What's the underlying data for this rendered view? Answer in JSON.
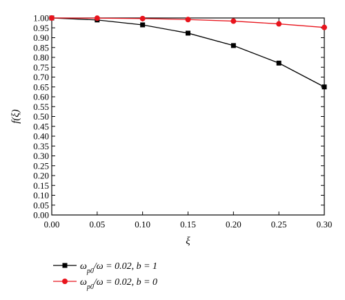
{
  "chart_data": {
    "type": "line",
    "title": "",
    "xlabel": "ξ",
    "ylabel": "f(ξ)",
    "xlim": [
      0.0,
      0.3
    ],
    "ylim": [
      0.0,
      1.0
    ],
    "x_ticks": [
      "0.00",
      "0.05",
      "0.10",
      "0.15",
      "0.20",
      "0.25",
      "0.30"
    ],
    "y_ticks": [
      "0.00",
      "0.05",
      "0.10",
      "0.15",
      "0.20",
      "0.25",
      "0.30",
      "0.35",
      "0.40",
      "0.45",
      "0.50",
      "0.55",
      "0.60",
      "0.65",
      "0.70",
      "0.75",
      "0.80",
      "0.85",
      "0.90",
      "0.95",
      "1.00"
    ],
    "grid": false,
    "legend_position": "bottom-left",
    "x": [
      0.0,
      0.05,
      0.1,
      0.15,
      0.2,
      0.25,
      0.3
    ],
    "series": [
      {
        "name": "ω_{p0}/ω = 0.02, b = 1",
        "values": [
          1.0,
          0.99,
          0.965,
          0.923,
          0.86,
          0.771,
          0.65
        ],
        "color": "#000000",
        "marker": "square"
      },
      {
        "name": "ω_{p0}/ω = 0.02, b = 0",
        "values": [
          1.0,
          0.999,
          0.997,
          0.992,
          0.984,
          0.97,
          0.952
        ],
        "color": "#e8141c",
        "marker": "circle"
      }
    ]
  }
}
